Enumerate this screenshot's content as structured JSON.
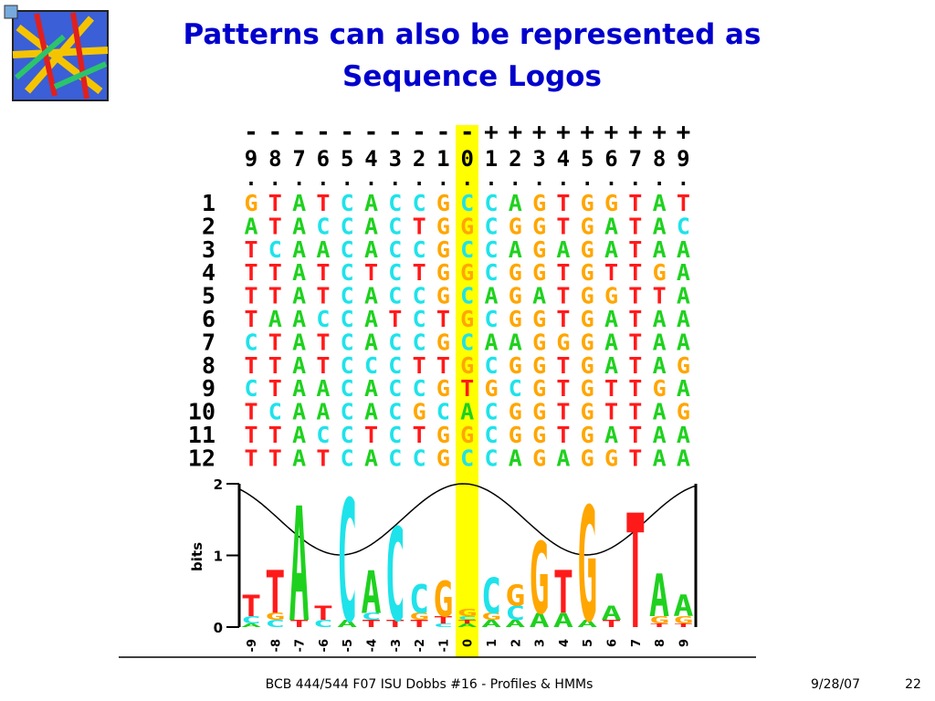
{
  "header": {
    "title_line1": "Patterns can also be represented as",
    "title_line2": "Sequence Logos"
  },
  "colors": {
    "A": "#1fd11f",
    "C": "#1fe3ea",
    "G": "#ffa600",
    "T": "#ff1a1a"
  },
  "alignment": {
    "positions": [
      {
        "sign": "-",
        "digit": "9",
        "dot": "."
      },
      {
        "sign": "-",
        "digit": "8",
        "dot": "."
      },
      {
        "sign": "-",
        "digit": "7",
        "dot": "."
      },
      {
        "sign": "-",
        "digit": "6",
        "dot": "."
      },
      {
        "sign": "-",
        "digit": "5",
        "dot": "."
      },
      {
        "sign": "-",
        "digit": "4",
        "dot": "."
      },
      {
        "sign": "-",
        "digit": "3",
        "dot": "."
      },
      {
        "sign": "-",
        "digit": "2",
        "dot": "."
      },
      {
        "sign": "-",
        "digit": "1",
        "dot": "."
      },
      {
        "sign": "-",
        "digit": "0",
        "dot": "."
      },
      {
        "sign": "+",
        "digit": "1",
        "dot": "."
      },
      {
        "sign": "+",
        "digit": "2",
        "dot": "."
      },
      {
        "sign": "+",
        "digit": "3",
        "dot": "."
      },
      {
        "sign": "+",
        "digit": "4",
        "dot": "."
      },
      {
        "sign": "+",
        "digit": "5",
        "dot": "."
      },
      {
        "sign": "+",
        "digit": "6",
        "dot": "."
      },
      {
        "sign": "+",
        "digit": "7",
        "dot": "."
      },
      {
        "sign": "+",
        "digit": "8",
        "dot": "."
      },
      {
        "sign": "+",
        "digit": "9",
        "dot": "."
      }
    ],
    "rows": [
      {
        "label": "1",
        "letters": [
          "G",
          "T",
          "A",
          "T",
          "C",
          "A",
          "C",
          "C",
          "G",
          "C",
          "C",
          "A",
          "G",
          "T",
          "G",
          "G",
          "T",
          "A",
          "T"
        ]
      },
      {
        "label": "2",
        "letters": [
          "A",
          "T",
          "A",
          "C",
          "C",
          "A",
          "C",
          "T",
          "G",
          "G",
          "C",
          "G",
          "G",
          "T",
          "G",
          "A",
          "T",
          "A",
          "C"
        ]
      },
      {
        "label": "3",
        "letters": [
          "T",
          "C",
          "A",
          "A",
          "C",
          "A",
          "C",
          "C",
          "G",
          "C",
          "C",
          "A",
          "G",
          "A",
          "G",
          "A",
          "T",
          "A",
          "A"
        ]
      },
      {
        "label": "4",
        "letters": [
          "T",
          "T",
          "A",
          "T",
          "C",
          "T",
          "C",
          "T",
          "G",
          "G",
          "C",
          "G",
          "G",
          "T",
          "G",
          "T",
          "T",
          "G",
          "A"
        ]
      },
      {
        "label": "5",
        "letters": [
          "T",
          "T",
          "A",
          "T",
          "C",
          "A",
          "C",
          "C",
          "G",
          "C",
          "A",
          "G",
          "A",
          "T",
          "G",
          "G",
          "T",
          "T",
          "A"
        ]
      },
      {
        "label": "6",
        "letters": [
          "T",
          "A",
          "A",
          "C",
          "C",
          "A",
          "T",
          "C",
          "T",
          "G",
          "C",
          "G",
          "G",
          "T",
          "G",
          "A",
          "T",
          "A",
          "A"
        ]
      },
      {
        "label": "7",
        "letters": [
          "C",
          "T",
          "A",
          "T",
          "C",
          "A",
          "C",
          "C",
          "G",
          "C",
          "A",
          "A",
          "G",
          "G",
          "G",
          "A",
          "T",
          "A",
          "A"
        ]
      },
      {
        "label": "8",
        "letters": [
          "T",
          "T",
          "A",
          "T",
          "C",
          "C",
          "C",
          "T",
          "T",
          "G",
          "C",
          "G",
          "G",
          "T",
          "G",
          "A",
          "T",
          "A",
          "G"
        ]
      },
      {
        "label": "9",
        "letters": [
          "C",
          "T",
          "A",
          "A",
          "C",
          "A",
          "C",
          "C",
          "G",
          "T",
          "G",
          "C",
          "G",
          "T",
          "G",
          "T",
          "T",
          "G",
          "A"
        ]
      },
      {
        "label": "10",
        "letters": [
          "T",
          "C",
          "A",
          "A",
          "C",
          "A",
          "C",
          "G",
          "C",
          "A",
          "C",
          "G",
          "G",
          "T",
          "G",
          "T",
          "T",
          "A",
          "G"
        ]
      },
      {
        "label": "11",
        "letters": [
          "T",
          "T",
          "A",
          "C",
          "C",
          "T",
          "C",
          "T",
          "G",
          "G",
          "C",
          "G",
          "G",
          "T",
          "G",
          "A",
          "T",
          "A",
          "A"
        ]
      },
      {
        "label": "12",
        "letters": [
          "T",
          "T",
          "A",
          "T",
          "C",
          "A",
          "C",
          "C",
          "G",
          "C",
          "C",
          "A",
          "G",
          "A",
          "G",
          "G",
          "T",
          "A",
          "A"
        ]
      }
    ]
  },
  "logo": {
    "y_label": "bits",
    "ylim": [
      0,
      2
    ],
    "yticks": [
      0,
      1,
      2
    ],
    "positions": [
      {
        "label": "-9",
        "stack": [
          {
            "letter": "A",
            "height": 0.05
          },
          {
            "letter": "C",
            "height": 0.1
          },
          {
            "letter": "T",
            "height": 0.3
          }
        ]
      },
      {
        "label": "-8",
        "stack": [
          {
            "letter": "C",
            "height": 0.1
          },
          {
            "letter": "G",
            "height": 0.1
          },
          {
            "letter": "T",
            "height": 0.6
          }
        ]
      },
      {
        "label": "-7",
        "stack": [
          {
            "letter": "T",
            "height": 0.1
          },
          {
            "letter": "A",
            "height": 1.6
          }
        ]
      },
      {
        "label": "-6",
        "stack": [
          {
            "letter": "C",
            "height": 0.1
          },
          {
            "letter": "T",
            "height": 0.2
          }
        ]
      },
      {
        "label": "-5",
        "stack": [
          {
            "letter": "A",
            "height": 0.1
          },
          {
            "letter": "C",
            "height": 1.7
          }
        ]
      },
      {
        "label": "-4",
        "stack": [
          {
            "letter": "T",
            "height": 0.1
          },
          {
            "letter": "C",
            "height": 0.1
          },
          {
            "letter": "A",
            "height": 0.6
          }
        ]
      },
      {
        "label": "-3",
        "stack": [
          {
            "letter": "T",
            "height": 0.1
          },
          {
            "letter": "C",
            "height": 1.3
          }
        ]
      },
      {
        "label": "-2",
        "stack": [
          {
            "letter": "T",
            "height": 0.1
          },
          {
            "letter": "G",
            "height": 0.1
          },
          {
            "letter": "C",
            "height": 0.4
          }
        ]
      },
      {
        "label": "-1",
        "stack": [
          {
            "letter": "C",
            "height": 0.05
          },
          {
            "letter": "T",
            "height": 0.1
          },
          {
            "letter": "G",
            "height": 0.5
          }
        ]
      },
      {
        "label": "0",
        "stack": [
          {
            "letter": "A",
            "height": 0.05
          },
          {
            "letter": "T",
            "height": 0.05
          },
          {
            "letter": "C",
            "height": 0.05
          },
          {
            "letter": "G",
            "height": 0.1
          }
        ]
      },
      {
        "label": "1",
        "stack": [
          {
            "letter": "A",
            "height": 0.1
          },
          {
            "letter": "G",
            "height": 0.1
          },
          {
            "letter": "C",
            "height": 0.5
          }
        ]
      },
      {
        "label": "2",
        "stack": [
          {
            "letter": "A",
            "height": 0.1
          },
          {
            "letter": "C",
            "height": 0.2
          },
          {
            "letter": "G",
            "height": 0.3
          }
        ]
      },
      {
        "label": "3",
        "stack": [
          {
            "letter": "A",
            "height": 0.2
          },
          {
            "letter": "G",
            "height": 1.0
          }
        ]
      },
      {
        "label": "4",
        "stack": [
          {
            "letter": "A",
            "height": 0.2
          },
          {
            "letter": "T",
            "height": 0.6
          }
        ]
      },
      {
        "label": "5",
        "stack": [
          {
            "letter": "A",
            "height": 0.1
          },
          {
            "letter": "G",
            "height": 1.6
          }
        ]
      },
      {
        "label": "6",
        "stack": [
          {
            "letter": "T",
            "height": 0.1
          },
          {
            "letter": "A",
            "height": 0.2
          }
        ]
      },
      {
        "label": "7",
        "stack": [
          {
            "letter": "T",
            "height": 1.6
          }
        ]
      },
      {
        "label": "8",
        "stack": [
          {
            "letter": "T",
            "height": 0.05
          },
          {
            "letter": "G",
            "height": 0.1
          },
          {
            "letter": "A",
            "height": 0.6
          }
        ]
      },
      {
        "label": "9",
        "stack": [
          {
            "letter": "T",
            "height": 0.05
          },
          {
            "letter": "G",
            "height": 0.1
          },
          {
            "letter": "A",
            "height": 0.3
          }
        ]
      }
    ]
  },
  "footer": {
    "course": "BCB 444/544 F07 ISU Dobbs #16 - Profiles & HMMs",
    "date": "9/28/07",
    "page": "22"
  }
}
